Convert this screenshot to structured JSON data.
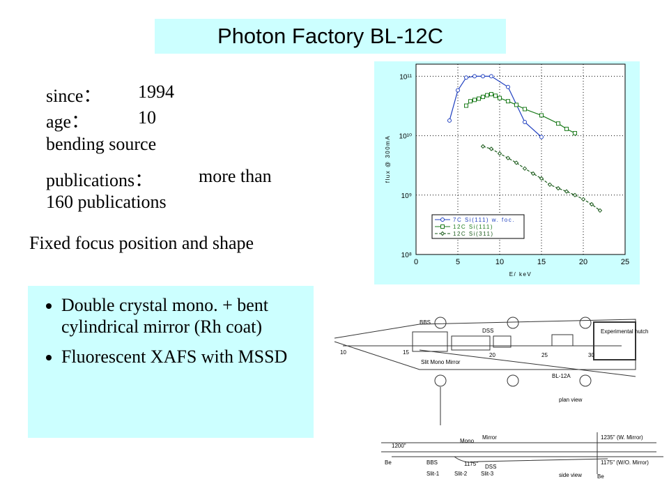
{
  "title": "Photon Factory BL-12C",
  "info": {
    "since_label": "since：",
    "since": "1994",
    "age_label": "age：",
    "age": "10",
    "source": "bending source",
    "publications_label": "publications：",
    "publications_1": "more than",
    "publications_2": "160 publications"
  },
  "focus": "Fixed focus position and shape",
  "bullets": [
    "Double crystal mono. + bent cylindrical mirror (Rh coat)",
    "Fluorescent XAFS with MSSD"
  ],
  "chart_data": {
    "type": "line",
    "xlabel": "E/ keV",
    "ylabel": "flux @ 300mA",
    "xlim": [
      0,
      25
    ],
    "xticks": [
      0,
      5,
      10,
      15,
      20,
      25
    ],
    "ylim": [
      100000000,
      160000000000
    ],
    "log_y": true,
    "grid": true,
    "yticks": [
      {
        "value": 100000000,
        "label": "10⁸"
      },
      {
        "value": 1000000000,
        "label": "10⁹"
      },
      {
        "value": 10000000000,
        "label": "10¹⁰"
      },
      {
        "value": 100000000000,
        "label": "10¹¹"
      }
    ],
    "legend": "lower left",
    "series": [
      {
        "name": "7C Si(111) w. foc.",
        "color": "#2040c0",
        "marker": "circle",
        "x": [
          4,
          5,
          6,
          7,
          8,
          9,
          11,
          13,
          15
        ],
        "values": [
          18000000000,
          58000000000,
          95000000000,
          100000000000,
          100000000000,
          100000000000,
          66000000000,
          17000000000,
          9500000000
        ]
      },
      {
        "name": "12C Si(111)",
        "color": "#1a7a1a",
        "marker": "square",
        "x": [
          6,
          6.5,
          7,
          7.5,
          8,
          8.5,
          9,
          9.5,
          10,
          11,
          12,
          13,
          15,
          17,
          18,
          19
        ],
        "values": [
          32000000000,
          38000000000,
          40000000000,
          42000000000,
          45000000000,
          48000000000,
          50000000000,
          47000000000,
          43000000000,
          38000000000,
          33000000000,
          28000000000,
          22000000000,
          16000000000,
          13000000000,
          11000000000
        ]
      },
      {
        "name": "12C Si(311)",
        "color": "#1a5a1a",
        "marker": "diamond",
        "dash": true,
        "x": [
          8,
          9,
          10,
          11,
          12,
          13,
          14,
          15,
          16,
          17,
          18,
          19,
          20,
          21,
          22
        ],
        "values": [
          6600000000,
          6000000000,
          5000000000,
          4200000000,
          3500000000,
          2800000000,
          2300000000,
          1900000000,
          1500000000,
          1300000000,
          1150000000,
          1000000000,
          850000000,
          700000000,
          550000000
        ]
      }
    ]
  },
  "beamline": {
    "plan": [
      "BBS",
      "DSS",
      "Experimental hutch",
      "10",
      "15",
      "20",
      "25",
      "30",
      "Slit Mono Mirror",
      "BL-12A",
      "plan view"
    ],
    "side": [
      "1200\"",
      "Mono",
      "Mirror",
      "1235\" (W. Mirror)",
      "1175\"",
      "1175\" (W/O. Mirror)",
      "Be",
      "BBS",
      "Slit-1",
      "Slit-2",
      "Slit-3",
      "DSS",
      "side view",
      "Be"
    ]
  }
}
